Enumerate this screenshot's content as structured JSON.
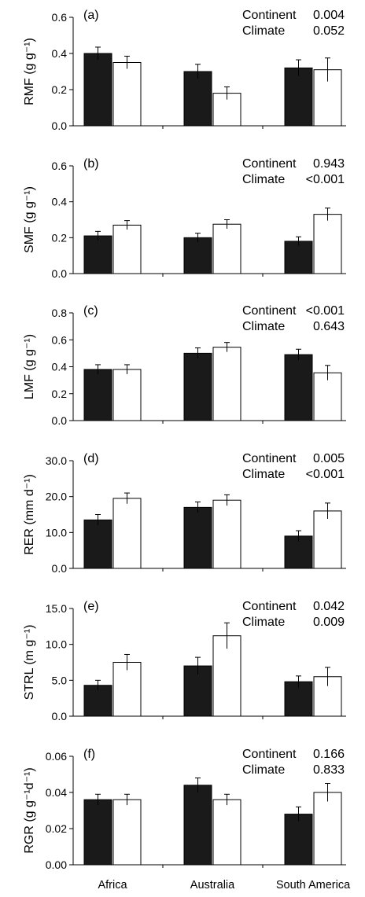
{
  "colors": {
    "dark_bar": "#1a1a1a",
    "light_bar": "#ffffff",
    "axis": "#000000"
  },
  "categories": [
    "Africa",
    "Australia",
    "South America"
  ],
  "chart_data": [
    {
      "type": "bar",
      "panel": "(a)",
      "ylabel": "RMF (g g⁻¹)",
      "ylim": [
        0,
        0.6
      ],
      "yticks": [
        "0.0",
        "0.2",
        "0.4",
        "0.6"
      ],
      "yticks_values": [
        0,
        0.2,
        0.4,
        0.6
      ],
      "categories": [
        "Africa",
        "Australia",
        "South America"
      ],
      "series": [
        {
          "values": [
            0.4,
            0.3,
            0.32
          ],
          "errors": [
            0.035,
            0.04,
            0.045
          ]
        },
        {
          "values": [
            0.35,
            0.18,
            0.31
          ],
          "errors": [
            0.035,
            0.035,
            0.065
          ]
        }
      ],
      "stats": [
        {
          "label": "Continent",
          "value": "0.004"
        },
        {
          "label": "Climate",
          "value": "0.052"
        }
      ]
    },
    {
      "type": "bar",
      "panel": "(b)",
      "ylabel": "SMF (g g⁻¹)",
      "ylim": [
        0,
        0.6
      ],
      "yticks": [
        "0.0",
        "0.2",
        "0.4",
        "0.6"
      ],
      "yticks_values": [
        0,
        0.2,
        0.4,
        0.6
      ],
      "categories": [
        "Africa",
        "Australia",
        "South America"
      ],
      "series": [
        {
          "values": [
            0.21,
            0.2,
            0.18
          ],
          "errors": [
            0.025,
            0.025,
            0.025
          ]
        },
        {
          "values": [
            0.27,
            0.275,
            0.33
          ],
          "errors": [
            0.025,
            0.025,
            0.035
          ]
        }
      ],
      "stats": [
        {
          "label": "Continent",
          "value": "0.943"
        },
        {
          "label": "Climate",
          "value": "<0.001"
        }
      ]
    },
    {
      "type": "bar",
      "panel": "(c)",
      "ylabel": "LMF (g g⁻¹)",
      "ylim": [
        0,
        0.8
      ],
      "yticks": [
        "0.0",
        "0.2",
        "0.4",
        "0.6",
        "0.8"
      ],
      "yticks_values": [
        0,
        0.2,
        0.4,
        0.6,
        0.8
      ],
      "categories": [
        "Africa",
        "Australia",
        "South America"
      ],
      "series": [
        {
          "values": [
            0.38,
            0.5,
            0.49
          ],
          "errors": [
            0.035,
            0.04,
            0.04
          ]
        },
        {
          "values": [
            0.38,
            0.545,
            0.355
          ],
          "errors": [
            0.035,
            0.035,
            0.055
          ]
        }
      ],
      "stats": [
        {
          "label": "Continent",
          "value": "<0.001"
        },
        {
          "label": "Climate",
          "value": "0.643"
        }
      ]
    },
    {
      "type": "bar",
      "panel": "(d)",
      "ylabel": "RER (mm d⁻¹)",
      "ylim": [
        0,
        30
      ],
      "yticks": [
        "0.0",
        "10.0",
        "20.0",
        "30.0"
      ],
      "yticks_values": [
        0,
        10,
        20,
        30
      ],
      "categories": [
        "Africa",
        "Australia",
        "South America"
      ],
      "series": [
        {
          "values": [
            13.5,
            17.0,
            9.0
          ],
          "errors": [
            1.5,
            1.5,
            1.5
          ]
        },
        {
          "values": [
            19.5,
            19.0,
            16.0
          ],
          "errors": [
            1.5,
            1.5,
            2.2
          ]
        }
      ],
      "stats": [
        {
          "label": "Continent",
          "value": "0.005"
        },
        {
          "label": "Climate",
          "value": "<0.001"
        }
      ]
    },
    {
      "type": "bar",
      "panel": "(e)",
      "ylabel": "STRL (m g⁻¹)",
      "ylim": [
        0,
        15
      ],
      "yticks": [
        "0.0",
        "5.0",
        "10.0",
        "15.0"
      ],
      "yticks_values": [
        0,
        5,
        10,
        15
      ],
      "categories": [
        "Africa",
        "Australia",
        "South America"
      ],
      "series": [
        {
          "values": [
            4.3,
            7.0,
            4.8
          ],
          "errors": [
            0.7,
            1.2,
            0.8
          ]
        },
        {
          "values": [
            7.5,
            11.2,
            5.5
          ],
          "errors": [
            1.1,
            1.8,
            1.3
          ]
        }
      ],
      "stats": [
        {
          "label": "Continent",
          "value": "0.042"
        },
        {
          "label": "Climate",
          "value": "0.009"
        }
      ]
    },
    {
      "type": "bar",
      "panel": "(f)",
      "ylabel": "RGR (g g⁻¹d⁻¹)",
      "ylim": [
        0,
        0.06
      ],
      "yticks": [
        "0.00",
        "0.02",
        "0.04",
        "0.06"
      ],
      "yticks_values": [
        0,
        0.02,
        0.04,
        0.06
      ],
      "categories": [
        "Africa",
        "Australia",
        "South America"
      ],
      "series": [
        {
          "values": [
            0.036,
            0.044,
            0.028
          ],
          "errors": [
            0.003,
            0.004,
            0.004
          ]
        },
        {
          "values": [
            0.036,
            0.036,
            0.04
          ],
          "errors": [
            0.003,
            0.003,
            0.005
          ]
        }
      ],
      "stats": [
        {
          "label": "Continent",
          "value": "0.166"
        },
        {
          "label": "Climate",
          "value": "0.833"
        }
      ]
    }
  ]
}
